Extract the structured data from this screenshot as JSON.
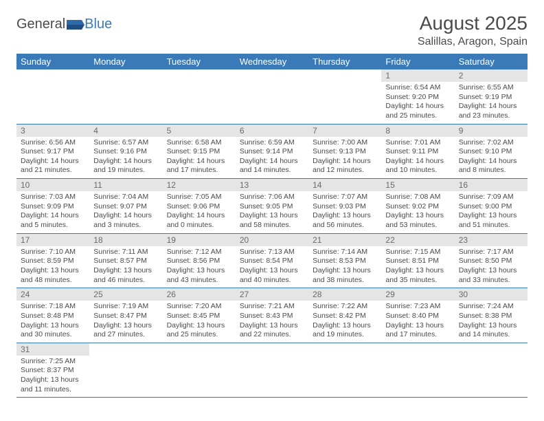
{
  "brand": {
    "part1": "General",
    "part2": "Blue"
  },
  "title": "August 2025",
  "location": "Salillas, Aragon, Spain",
  "colors": {
    "header_bg": "#3a7ab8",
    "header_text": "#ffffff",
    "daynum_bg": "#e5e5e5",
    "border": "#3a7ab8",
    "body_text": "#4a4a4a"
  },
  "weekdays": [
    "Sunday",
    "Monday",
    "Tuesday",
    "Wednesday",
    "Thursday",
    "Friday",
    "Saturday"
  ],
  "weeks": [
    [
      {
        "n": "",
        "sr": "",
        "ss": "",
        "dl": ""
      },
      {
        "n": "",
        "sr": "",
        "ss": "",
        "dl": ""
      },
      {
        "n": "",
        "sr": "",
        "ss": "",
        "dl": ""
      },
      {
        "n": "",
        "sr": "",
        "ss": "",
        "dl": ""
      },
      {
        "n": "",
        "sr": "",
        "ss": "",
        "dl": ""
      },
      {
        "n": "1",
        "sr": "Sunrise: 6:54 AM",
        "ss": "Sunset: 9:20 PM",
        "dl": "Daylight: 14 hours and 25 minutes."
      },
      {
        "n": "2",
        "sr": "Sunrise: 6:55 AM",
        "ss": "Sunset: 9:19 PM",
        "dl": "Daylight: 14 hours and 23 minutes."
      }
    ],
    [
      {
        "n": "3",
        "sr": "Sunrise: 6:56 AM",
        "ss": "Sunset: 9:17 PM",
        "dl": "Daylight: 14 hours and 21 minutes."
      },
      {
        "n": "4",
        "sr": "Sunrise: 6:57 AM",
        "ss": "Sunset: 9:16 PM",
        "dl": "Daylight: 14 hours and 19 minutes."
      },
      {
        "n": "5",
        "sr": "Sunrise: 6:58 AM",
        "ss": "Sunset: 9:15 PM",
        "dl": "Daylight: 14 hours and 17 minutes."
      },
      {
        "n": "6",
        "sr": "Sunrise: 6:59 AM",
        "ss": "Sunset: 9:14 PM",
        "dl": "Daylight: 14 hours and 14 minutes."
      },
      {
        "n": "7",
        "sr": "Sunrise: 7:00 AM",
        "ss": "Sunset: 9:13 PM",
        "dl": "Daylight: 14 hours and 12 minutes."
      },
      {
        "n": "8",
        "sr": "Sunrise: 7:01 AM",
        "ss": "Sunset: 9:11 PM",
        "dl": "Daylight: 14 hours and 10 minutes."
      },
      {
        "n": "9",
        "sr": "Sunrise: 7:02 AM",
        "ss": "Sunset: 9:10 PM",
        "dl": "Daylight: 14 hours and 8 minutes."
      }
    ],
    [
      {
        "n": "10",
        "sr": "Sunrise: 7:03 AM",
        "ss": "Sunset: 9:09 PM",
        "dl": "Daylight: 14 hours and 5 minutes."
      },
      {
        "n": "11",
        "sr": "Sunrise: 7:04 AM",
        "ss": "Sunset: 9:07 PM",
        "dl": "Daylight: 14 hours and 3 minutes."
      },
      {
        "n": "12",
        "sr": "Sunrise: 7:05 AM",
        "ss": "Sunset: 9:06 PM",
        "dl": "Daylight: 14 hours and 0 minutes."
      },
      {
        "n": "13",
        "sr": "Sunrise: 7:06 AM",
        "ss": "Sunset: 9:05 PM",
        "dl": "Daylight: 13 hours and 58 minutes."
      },
      {
        "n": "14",
        "sr": "Sunrise: 7:07 AM",
        "ss": "Sunset: 9:03 PM",
        "dl": "Daylight: 13 hours and 56 minutes."
      },
      {
        "n": "15",
        "sr": "Sunrise: 7:08 AM",
        "ss": "Sunset: 9:02 PM",
        "dl": "Daylight: 13 hours and 53 minutes."
      },
      {
        "n": "16",
        "sr": "Sunrise: 7:09 AM",
        "ss": "Sunset: 9:00 PM",
        "dl": "Daylight: 13 hours and 51 minutes."
      }
    ],
    [
      {
        "n": "17",
        "sr": "Sunrise: 7:10 AM",
        "ss": "Sunset: 8:59 PM",
        "dl": "Daylight: 13 hours and 48 minutes."
      },
      {
        "n": "18",
        "sr": "Sunrise: 7:11 AM",
        "ss": "Sunset: 8:57 PM",
        "dl": "Daylight: 13 hours and 46 minutes."
      },
      {
        "n": "19",
        "sr": "Sunrise: 7:12 AM",
        "ss": "Sunset: 8:56 PM",
        "dl": "Daylight: 13 hours and 43 minutes."
      },
      {
        "n": "20",
        "sr": "Sunrise: 7:13 AM",
        "ss": "Sunset: 8:54 PM",
        "dl": "Daylight: 13 hours and 40 minutes."
      },
      {
        "n": "21",
        "sr": "Sunrise: 7:14 AM",
        "ss": "Sunset: 8:53 PM",
        "dl": "Daylight: 13 hours and 38 minutes."
      },
      {
        "n": "22",
        "sr": "Sunrise: 7:15 AM",
        "ss": "Sunset: 8:51 PM",
        "dl": "Daylight: 13 hours and 35 minutes."
      },
      {
        "n": "23",
        "sr": "Sunrise: 7:17 AM",
        "ss": "Sunset: 8:50 PM",
        "dl": "Daylight: 13 hours and 33 minutes."
      }
    ],
    [
      {
        "n": "24",
        "sr": "Sunrise: 7:18 AM",
        "ss": "Sunset: 8:48 PM",
        "dl": "Daylight: 13 hours and 30 minutes."
      },
      {
        "n": "25",
        "sr": "Sunrise: 7:19 AM",
        "ss": "Sunset: 8:47 PM",
        "dl": "Daylight: 13 hours and 27 minutes."
      },
      {
        "n": "26",
        "sr": "Sunrise: 7:20 AM",
        "ss": "Sunset: 8:45 PM",
        "dl": "Daylight: 13 hours and 25 minutes."
      },
      {
        "n": "27",
        "sr": "Sunrise: 7:21 AM",
        "ss": "Sunset: 8:43 PM",
        "dl": "Daylight: 13 hours and 22 minutes."
      },
      {
        "n": "28",
        "sr": "Sunrise: 7:22 AM",
        "ss": "Sunset: 8:42 PM",
        "dl": "Daylight: 13 hours and 19 minutes."
      },
      {
        "n": "29",
        "sr": "Sunrise: 7:23 AM",
        "ss": "Sunset: 8:40 PM",
        "dl": "Daylight: 13 hours and 17 minutes."
      },
      {
        "n": "30",
        "sr": "Sunrise: 7:24 AM",
        "ss": "Sunset: 8:38 PM",
        "dl": "Daylight: 13 hours and 14 minutes."
      }
    ],
    [
      {
        "n": "31",
        "sr": "Sunrise: 7:25 AM",
        "ss": "Sunset: 8:37 PM",
        "dl": "Daylight: 13 hours and 11 minutes."
      },
      {
        "n": "",
        "sr": "",
        "ss": "",
        "dl": ""
      },
      {
        "n": "",
        "sr": "",
        "ss": "",
        "dl": ""
      },
      {
        "n": "",
        "sr": "",
        "ss": "",
        "dl": ""
      },
      {
        "n": "",
        "sr": "",
        "ss": "",
        "dl": ""
      },
      {
        "n": "",
        "sr": "",
        "ss": "",
        "dl": ""
      },
      {
        "n": "",
        "sr": "",
        "ss": "",
        "dl": ""
      }
    ]
  ]
}
